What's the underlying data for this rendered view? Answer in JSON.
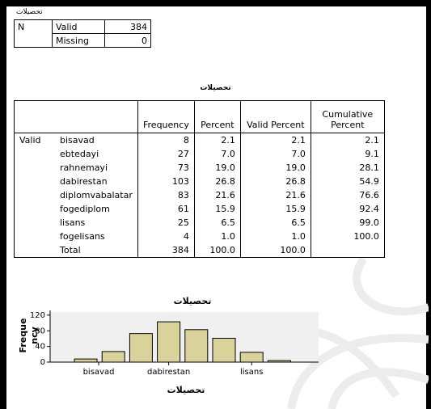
{
  "statistics": {
    "title": "تحصیلات",
    "n_label": "N",
    "valid_label": "Valid",
    "valid_value": "384",
    "missing_label": "Missing",
    "missing_value": "0"
  },
  "frequency_table": {
    "title": "تحصیلات",
    "headers": [
      "Frequency",
      "Percent",
      "Valid Percent",
      "Cumulative Percent"
    ],
    "group_label": "Valid",
    "rows": [
      {
        "label": "bisavad",
        "frequency": "8",
        "percent": "2.1",
        "valid_percent": "2.1",
        "cumulative": "2.1"
      },
      {
        "label": "ebtedayi",
        "frequency": "27",
        "percent": "7.0",
        "valid_percent": "7.0",
        "cumulative": "9.1"
      },
      {
        "label": "rahnemayi",
        "frequency": "73",
        "percent": "19.0",
        "valid_percent": "19.0",
        "cumulative": "28.1"
      },
      {
        "label": "dabirestan",
        "frequency": "103",
        "percent": "26.8",
        "valid_percent": "26.8",
        "cumulative": "54.9"
      },
      {
        "label": "diplomvabalatar",
        "frequency": "83",
        "percent": "21.6",
        "valid_percent": "21.6",
        "cumulative": "76.6"
      },
      {
        "label": "fogediplom",
        "frequency": "61",
        "percent": "15.9",
        "valid_percent": "15.9",
        "cumulative": "92.4"
      },
      {
        "label": "lisans",
        "frequency": "25",
        "percent": "6.5",
        "valid_percent": "6.5",
        "cumulative": "99.0"
      },
      {
        "label": "fogelisans",
        "frequency": "4",
        "percent": "1.0",
        "valid_percent": "1.0",
        "cumulative": "100.0"
      },
      {
        "label": "Total",
        "frequency": "384",
        "percent": "100.0",
        "valid_percent": "100.0",
        "cumulative": ""
      }
    ]
  },
  "colors": {
    "bar_fill": "#d9d29a",
    "bar_stroke": "#000000",
    "plot_bg": "#f0f0f0"
  },
  "chart_data": {
    "type": "bar",
    "title": "تحصیلات",
    "xlabel": "تحصیلات",
    "ylabel": "Freque ncy",
    "categories": [
      "bisavad",
      "ebtedayi",
      "rahnemayi",
      "dabirestan",
      "diplomvabalatar",
      "fogediplom",
      "lisans",
      "fogelisans"
    ],
    "values": [
      8,
      27,
      73,
      103,
      83,
      61,
      25,
      4
    ],
    "x_tick_labels": [
      "bisavad",
      "dabirestan",
      "lisans"
    ],
    "y_ticks": [
      0,
      40,
      80,
      120
    ],
    "ylim": [
      0,
      128
    ],
    "grid": false,
    "legend": "none"
  }
}
